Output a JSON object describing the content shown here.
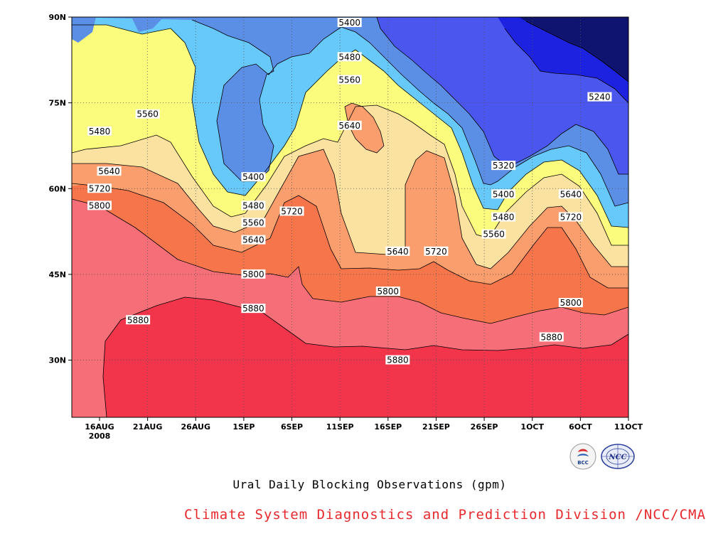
{
  "chart_data": {
    "type": "contour",
    "title": "",
    "xlabel": "",
    "ylabel": "",
    "x_ticks": [
      "16AUG",
      "21AUG",
      "26AUG",
      "1SEP",
      "6SEP",
      "11SEP",
      "16SEP",
      "21SEP",
      "26SEP",
      "1OCT",
      "6OCT",
      "11OCT"
    ],
    "x_year_label": "2008",
    "y_ticks": [
      "30N",
      "45N",
      "60N",
      "75N",
      "90N"
    ],
    "ylim": [
      20,
      90
    ],
    "units": "gpm",
    "contour_levels": [
      5240,
      5320,
      5400,
      5480,
      5560,
      5640,
      5720,
      5800,
      5880
    ],
    "level_colors": {
      "below_5240": "#0e1470",
      "5240_5320": "#1d22e0",
      "5320_5400": "#4a56ee",
      "5400_5480": "#5b8fe6",
      "5480_5560": "#67c8fa",
      "5560_5640": "#fbfb7e",
      "5640_5720": "#fbe2a0",
      "5720_5800": "#f99e6c",
      "5800_5880": "#f7754a",
      "5880_5960": "#f56e78",
      "above_5960": "#f2354b"
    },
    "contour_labels": [
      {
        "value": "5400",
        "date": "11SEP",
        "lat": 89
      },
      {
        "value": "5480",
        "date": "11SEP",
        "lat": 83
      },
      {
        "value": "5560",
        "date": "11SEP",
        "lat": 79
      },
      {
        "value": "5640",
        "date": "11SEP",
        "lat": 71
      },
      {
        "value": "5240",
        "date": "7OCT",
        "lat": 76
      },
      {
        "value": "5320",
        "date": "27SEP",
        "lat": 64
      },
      {
        "value": "5400",
        "date": "27SEP",
        "lat": 59
      },
      {
        "value": "5480",
        "date": "27SEP",
        "lat": 55
      },
      {
        "value": "5560",
        "date": "26SEP",
        "lat": 52
      },
      {
        "value": "5640",
        "date": "4OCT",
        "lat": 59
      },
      {
        "value": "5720",
        "date": "4OCT",
        "lat": 55
      },
      {
        "value": "5800",
        "date": "4OCT",
        "lat": 40
      },
      {
        "value": "5880",
        "date": "2OCT",
        "lat": 34
      },
      {
        "value": "5480",
        "date": "16AUG",
        "lat": 70
      },
      {
        "value": "5560",
        "date": "21AUG",
        "lat": 73
      },
      {
        "value": "5640",
        "date": "17AUG",
        "lat": 63
      },
      {
        "value": "5720",
        "date": "16AUG",
        "lat": 60
      },
      {
        "value": "5800",
        "date": "16AUG",
        "lat": 57
      },
      {
        "value": "5880",
        "date": "20AUG",
        "lat": 37
      },
      {
        "value": "5400",
        "date": "1SEP",
        "lat": 62
      },
      {
        "value": "5480",
        "date": "1SEP",
        "lat": 57
      },
      {
        "value": "5560",
        "date": "1SEP",
        "lat": 54
      },
      {
        "value": "5640",
        "date": "1SEP",
        "lat": 51
      },
      {
        "value": "5720",
        "date": "5SEP",
        "lat": 56
      },
      {
        "value": "5800",
        "date": "1SEP",
        "lat": 45
      },
      {
        "value": "5880",
        "date": "1SEP",
        "lat": 39
      },
      {
        "value": "5800",
        "date": "15SEP",
        "lat": 42
      },
      {
        "value": "5640",
        "date": "16SEP",
        "lat": 49
      },
      {
        "value": "5720",
        "date": "20SEP",
        "lat": 49
      },
      {
        "value": "5880",
        "date": "16SEP",
        "lat": 30
      }
    ],
    "grid": true
  },
  "captions": {
    "title": "Ural Daily Blocking Observations (gpm)",
    "source": "Climate System Diagnostics and Prediction Division /NCC/CMA"
  },
  "logos": {
    "left": "BCC",
    "right": "NCC"
  }
}
